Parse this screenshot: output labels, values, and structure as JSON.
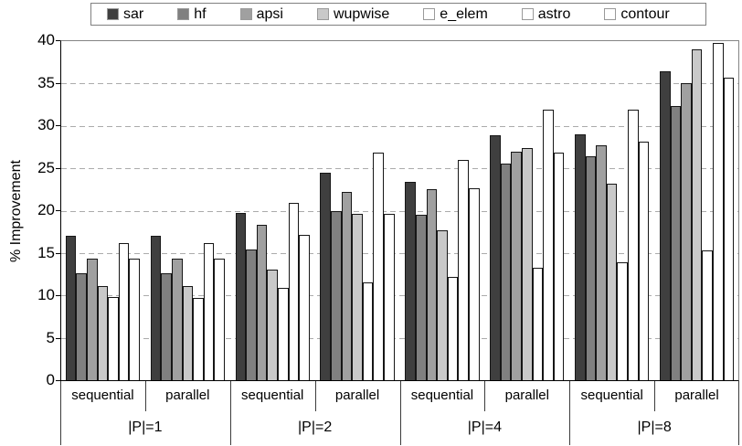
{
  "chart_data": {
    "type": "bar",
    "title": "",
    "xlabel": "",
    "ylabel": "% Improvement",
    "ylim": [
      0,
      40
    ],
    "ytick_step": 5,
    "ytick_labels": [
      "0",
      "5",
      "10",
      "15",
      "20",
      "25",
      "30",
      "35",
      "40"
    ],
    "grid": "horizontal-dashed",
    "legend_position": "top",
    "groups": [
      {
        "label": "|P|=1",
        "subgroups": [
          "sequential",
          "parallel"
        ]
      },
      {
        "label": "|P|=2",
        "subgroups": [
          "sequential",
          "parallel"
        ]
      },
      {
        "label": "|P|=4",
        "subgroups": [
          "sequential",
          "parallel"
        ]
      },
      {
        "label": "|P|=8",
        "subgroups": [
          "sequential",
          "parallel"
        ]
      }
    ],
    "categories": [
      "|P|=1 sequential",
      "|P|=1 parallel",
      "|P|=2 sequential",
      "|P|=2 parallel",
      "|P|=4 sequential",
      "|P|=4 parallel",
      "|P|=8 sequential",
      "|P|=8 parallel"
    ],
    "series": [
      {
        "name": "sar",
        "color": "#3f3f3f",
        "values": [
          17.0,
          17.0,
          19.7,
          24.5,
          23.4,
          28.9,
          29.0,
          36.4
        ]
      },
      {
        "name": "hf",
        "color": "#808080",
        "values": [
          12.6,
          12.6,
          15.4,
          19.9,
          19.5,
          25.5,
          26.4,
          32.3
        ]
      },
      {
        "name": "apsi",
        "color": "#a0a0a0",
        "values": [
          14.3,
          14.3,
          18.3,
          22.2,
          22.5,
          27.0,
          27.7,
          35.0
        ]
      },
      {
        "name": "wupwise",
        "color": "#c9c9c9",
        "values": [
          11.1,
          11.1,
          13.0,
          19.6,
          17.7,
          27.4,
          23.2,
          39.0
        ]
      },
      {
        "name": "e_elem",
        "color": "#ffffff",
        "values": [
          9.8,
          9.7,
          10.9,
          11.5,
          12.2,
          13.3,
          13.9,
          15.3
        ]
      },
      {
        "name": "astro",
        "color": "#ffffff",
        "values": [
          16.2,
          16.2,
          20.9,
          26.9,
          26.0,
          31.9,
          31.9,
          39.8
        ]
      },
      {
        "name": "contour",
        "color": "#ffffff",
        "values": [
          14.3,
          14.3,
          17.1,
          19.6,
          22.6,
          26.8,
          28.1,
          35.7
        ]
      }
    ]
  }
}
